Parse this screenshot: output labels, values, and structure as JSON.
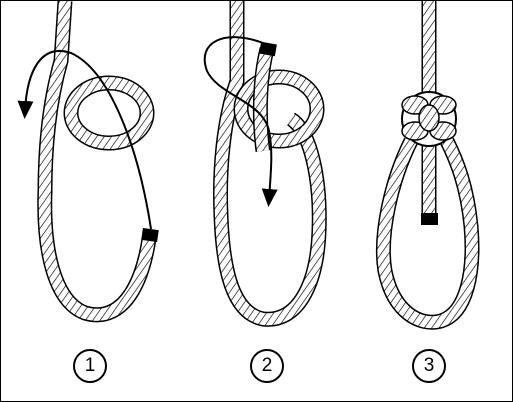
{
  "steps": [
    {
      "number": "1"
    },
    {
      "number": "2"
    },
    {
      "number": "3"
    }
  ],
  "colors": {
    "rope_fill": "#ffffff",
    "rope_outline": "#000000",
    "rope_strand": "#000000",
    "rope_end_whipping": "#000000",
    "arrow": "#000000",
    "frame_border": "#000000"
  },
  "icons": [
    "rope-diagram",
    "direction-arrow",
    "whipped-rope-end"
  ]
}
